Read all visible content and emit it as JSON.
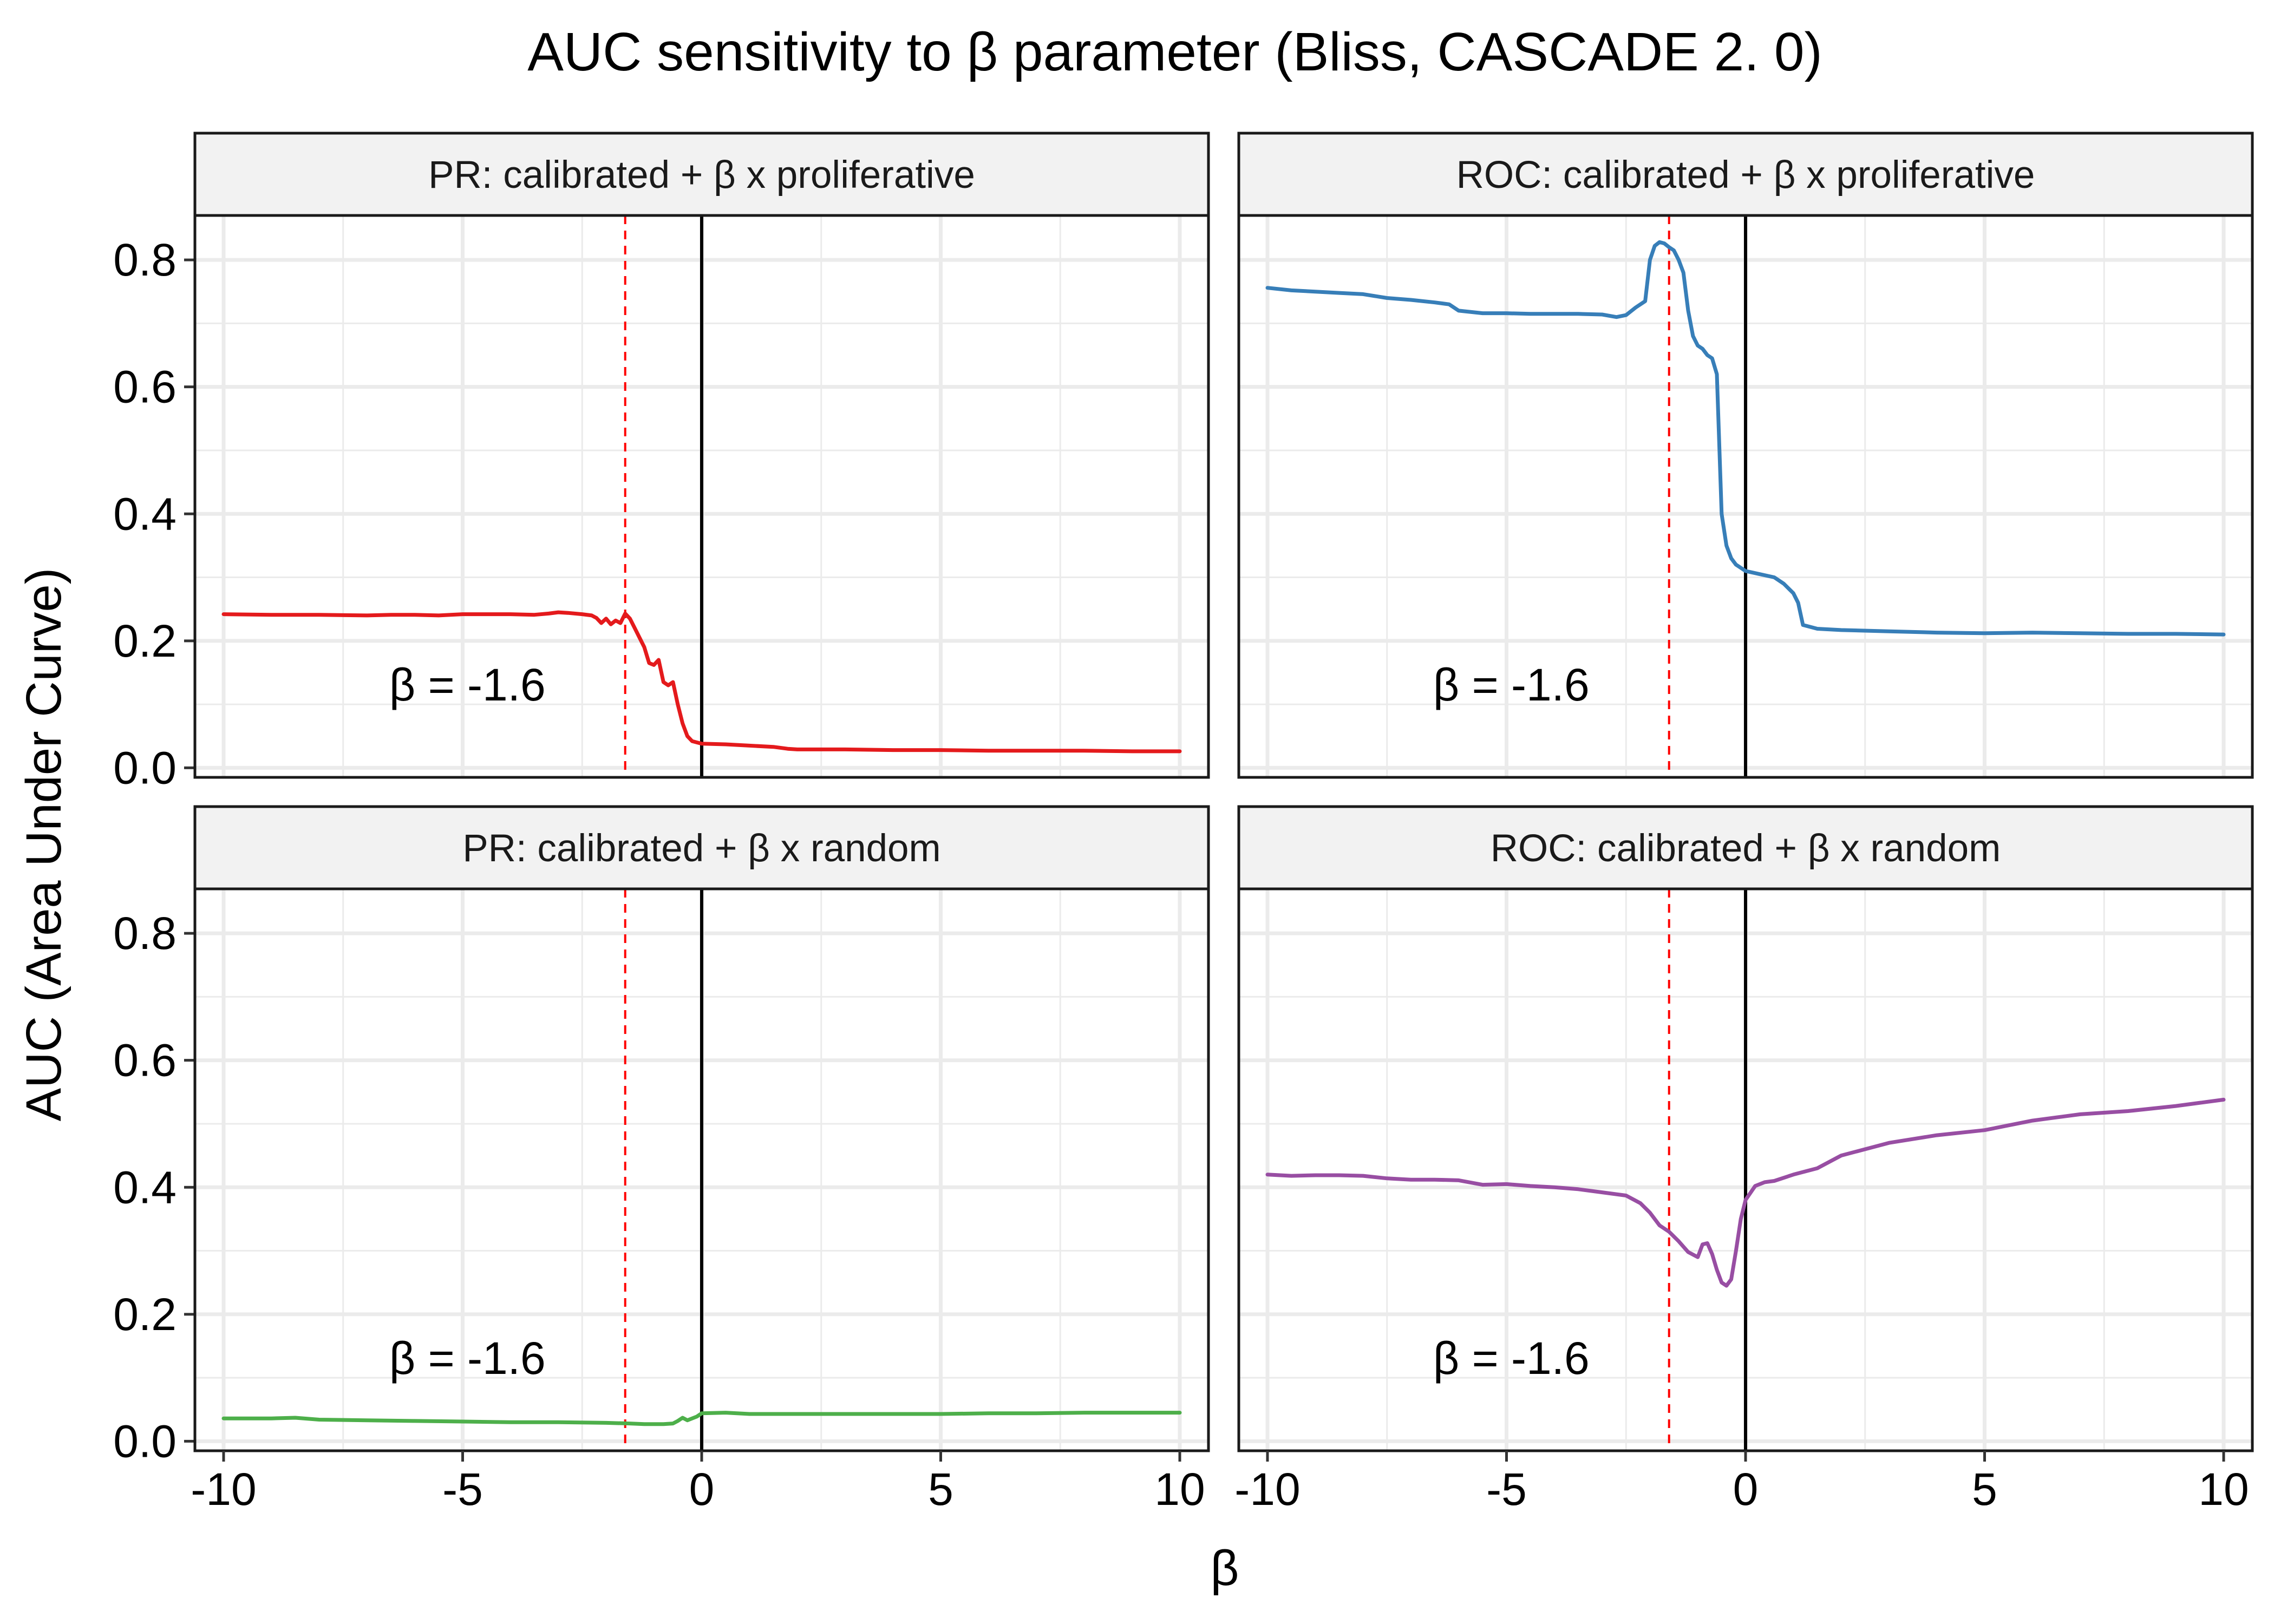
{
  "chart_data": {
    "type": "line",
    "title": "AUC sensitivity to β parameter (Bliss, CASCADE 2. 0)",
    "xlabel": "β",
    "ylabel": "AUC (Area Under Curve)",
    "xlim": [
      -10.6,
      10.6
    ],
    "ylim": [
      -0.015,
      0.87
    ],
    "x_ticks": [
      -10,
      -5,
      0,
      5,
      10
    ],
    "x_tick_labels": [
      "-10",
      "-5",
      "0",
      "5",
      "10"
    ],
    "y_ticks": [
      0.0,
      0.2,
      0.4,
      0.6,
      0.8
    ],
    "y_tick_labels": [
      "0.0",
      "0.2",
      "0.4",
      "0.6",
      "0.8"
    ],
    "grid": true,
    "reference_lines": {
      "vertical_solid_at": 0,
      "vertical_dashed_at": -1.6,
      "dashed_color": "#ff0000"
    },
    "panels": [
      {
        "strip": "PR: calibrated + β x proliferative",
        "annotation": "β = -1.6",
        "color": "#e41a1c",
        "x": [
          -10,
          -9,
          -8,
          -7,
          -6.5,
          -6,
          -5.5,
          -5,
          -4.5,
          -4,
          -3.5,
          -3.2,
          -3,
          -2.8,
          -2.5,
          -2.3,
          -2.2,
          -2.1,
          -2.0,
          -1.9,
          -1.8,
          -1.7,
          -1.6,
          -1.5,
          -1.4,
          -1.3,
          -1.2,
          -1.1,
          -1.0,
          -0.9,
          -0.8,
          -0.7,
          -0.6,
          -0.5,
          -0.4,
          -0.3,
          -0.2,
          -0.1,
          0,
          0.5,
          1,
          1.5,
          1.8,
          2,
          3,
          4,
          5,
          6,
          7,
          8,
          9,
          10
        ],
        "y": [
          0.242,
          0.241,
          0.241,
          0.24,
          0.241,
          0.241,
          0.24,
          0.242,
          0.242,
          0.242,
          0.241,
          0.243,
          0.245,
          0.244,
          0.242,
          0.24,
          0.236,
          0.228,
          0.235,
          0.226,
          0.232,
          0.228,
          0.243,
          0.235,
          0.22,
          0.205,
          0.19,
          0.165,
          0.162,
          0.17,
          0.135,
          0.13,
          0.135,
          0.1,
          0.07,
          0.05,
          0.042,
          0.04,
          0.038,
          0.037,
          0.035,
          0.033,
          0.03,
          0.029,
          0.029,
          0.028,
          0.028,
          0.027,
          0.027,
          0.027,
          0.026,
          0.026
        ]
      },
      {
        "strip": "ROC: calibrated + β x proliferative",
        "annotation": "β = -1.6",
        "color": "#377eb8",
        "x": [
          -10,
          -9.5,
          -9,
          -8.5,
          -8,
          -7.5,
          -7,
          -6.5,
          -6.2,
          -6,
          -5.5,
          -5,
          -4.5,
          -4,
          -3.5,
          -3,
          -2.7,
          -2.5,
          -2.3,
          -2.1,
          -2.0,
          -1.9,
          -1.8,
          -1.7,
          -1.6,
          -1.5,
          -1.4,
          -1.3,
          -1.2,
          -1.1,
          -1.0,
          -0.9,
          -0.8,
          -0.7,
          -0.6,
          -0.5,
          -0.4,
          -0.3,
          -0.2,
          -0.1,
          0,
          0.3,
          0.6,
          0.8,
          1.0,
          1.1,
          1.2,
          1.5,
          2,
          3,
          4,
          5,
          6,
          7,
          8,
          9,
          10
        ],
        "y": [
          0.756,
          0.752,
          0.75,
          0.748,
          0.746,
          0.74,
          0.737,
          0.733,
          0.73,
          0.72,
          0.716,
          0.716,
          0.715,
          0.715,
          0.715,
          0.714,
          0.71,
          0.713,
          0.725,
          0.735,
          0.8,
          0.822,
          0.828,
          0.826,
          0.82,
          0.815,
          0.8,
          0.78,
          0.72,
          0.68,
          0.665,
          0.66,
          0.65,
          0.645,
          0.62,
          0.4,
          0.35,
          0.33,
          0.32,
          0.315,
          0.31,
          0.305,
          0.3,
          0.29,
          0.275,
          0.26,
          0.225,
          0.219,
          0.217,
          0.215,
          0.213,
          0.212,
          0.213,
          0.212,
          0.211,
          0.211,
          0.21
        ]
      },
      {
        "strip": "PR: calibrated + β x random",
        "annotation": "β = -1.6",
        "color": "#4daf4a",
        "x": [
          -10,
          -9,
          -8.5,
          -8,
          -7,
          -6,
          -5,
          -4,
          -3,
          -2,
          -1.5,
          -1.2,
          -1.0,
          -0.8,
          -0.6,
          -0.5,
          -0.4,
          -0.3,
          -0.2,
          -0.1,
          0,
          0.5,
          1,
          2,
          3,
          4,
          5,
          6,
          7,
          8,
          9,
          10
        ],
        "y": [
          0.036,
          0.036,
          0.037,
          0.034,
          0.033,
          0.032,
          0.031,
          0.03,
          0.03,
          0.029,
          0.028,
          0.027,
          0.027,
          0.027,
          0.028,
          0.032,
          0.037,
          0.033,
          0.036,
          0.039,
          0.044,
          0.045,
          0.043,
          0.043,
          0.043,
          0.043,
          0.043,
          0.044,
          0.044,
          0.045,
          0.045,
          0.045
        ]
      },
      {
        "strip": "ROC: calibrated + β x random",
        "annotation": "β = -1.6",
        "color": "#984ea3",
        "x": [
          -10,
          -9.5,
          -9,
          -8.5,
          -8,
          -7.5,
          -7,
          -6.5,
          -6,
          -5.5,
          -5,
          -4.5,
          -4,
          -3.5,
          -3,
          -2.5,
          -2.2,
          -2,
          -1.8,
          -1.6,
          -1.4,
          -1.2,
          -1.0,
          -0.9,
          -0.8,
          -0.7,
          -0.6,
          -0.5,
          -0.4,
          -0.3,
          -0.2,
          -0.1,
          0,
          0.2,
          0.4,
          0.6,
          1,
          1.5,
          2,
          3,
          4,
          5,
          6,
          6.5,
          7,
          8,
          9,
          10
        ],
        "y": [
          0.42,
          0.418,
          0.419,
          0.419,
          0.418,
          0.414,
          0.412,
          0.412,
          0.411,
          0.404,
          0.405,
          0.402,
          0.4,
          0.397,
          0.392,
          0.387,
          0.375,
          0.36,
          0.34,
          0.33,
          0.315,
          0.298,
          0.29,
          0.31,
          0.312,
          0.295,
          0.27,
          0.25,
          0.245,
          0.255,
          0.3,
          0.35,
          0.38,
          0.402,
          0.408,
          0.41,
          0.42,
          0.43,
          0.45,
          0.47,
          0.482,
          0.49,
          0.505,
          0.51,
          0.515,
          0.52,
          0.528,
          0.538
        ]
      }
    ]
  }
}
